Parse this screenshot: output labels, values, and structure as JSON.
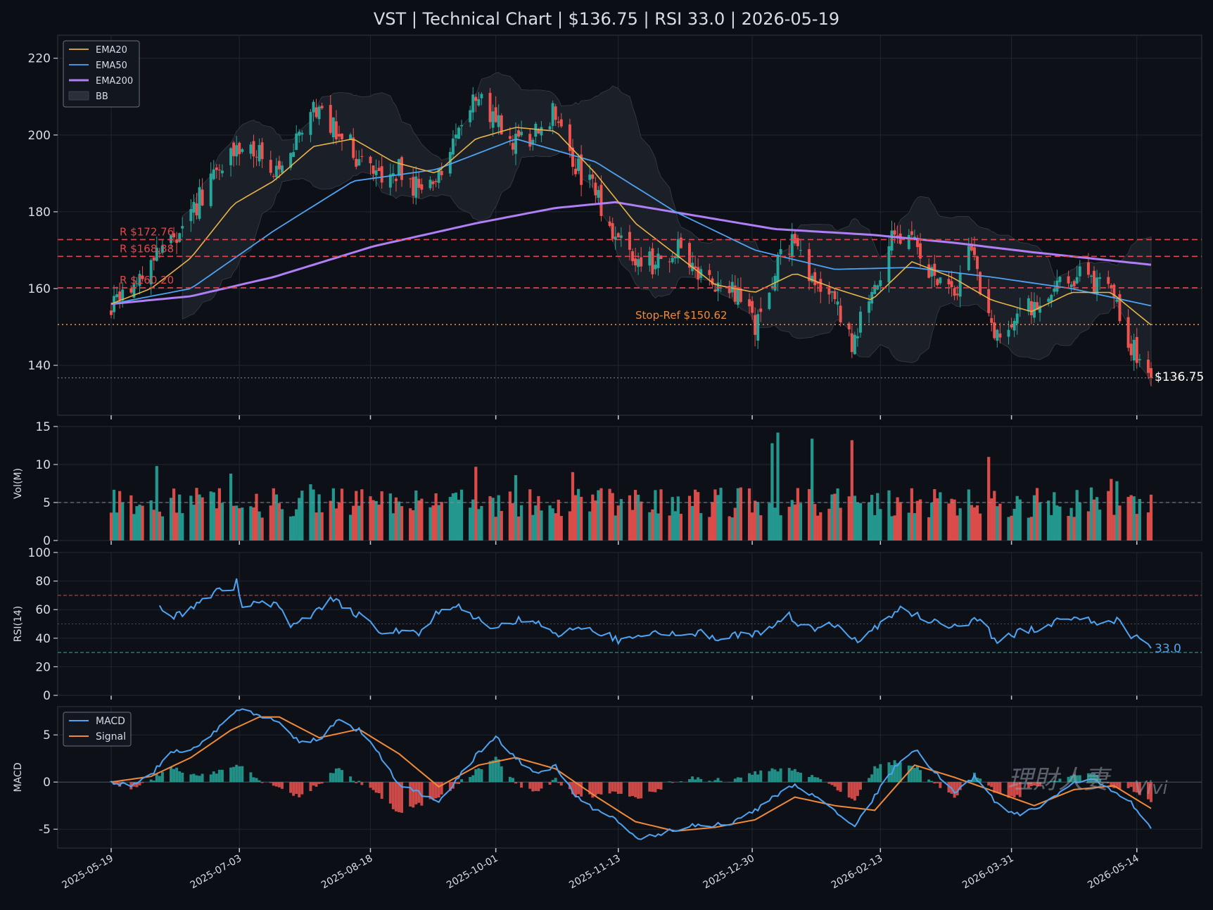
{
  "title": "VST | Technical Chart | $136.75 | RSI 33.0 | 2026-05-19",
  "colors": {
    "background": "#0b0e14",
    "panel": "#0d1117",
    "grid": "#1f2530",
    "up": "#26a69a",
    "down": "#ef5350",
    "ema20": "#e8b34a",
    "ema50": "#4ea3f2",
    "ema200": "#b07ff5",
    "bb": "#2a2f38",
    "resistance": "#e0474c",
    "stop": "#f08a3a",
    "macd": "#4ea3f2",
    "signal": "#f08a3a",
    "text": "#d8dce6"
  },
  "chart_data": [
    {
      "panel": "price",
      "type": "candlestick",
      "ylim": [
        127,
        226
      ],
      "yticks": [
        140,
        160,
        180,
        200,
        220
      ],
      "legend": {
        "position": "top-left",
        "entries": [
          "EMA20",
          "EMA50",
          "EMA200",
          "BB"
        ]
      },
      "price_path": [
        [
          "2025-05-19",
          154
        ],
        [
          "2025-05-26",
          158
        ],
        [
          "2025-06-02",
          166
        ],
        [
          "2025-06-10",
          172
        ],
        [
          "2025-06-16",
          180
        ],
        [
          "2025-06-24",
          188
        ],
        [
          "2025-07-01",
          194
        ],
        [
          "2025-07-08",
          196
        ],
        [
          "2025-07-15",
          192
        ],
        [
          "2025-07-22",
          199
        ],
        [
          "2025-07-29",
          208
        ],
        [
          "2025-08-05",
          203
        ],
        [
          "2025-08-12",
          196
        ],
        [
          "2025-08-19",
          190
        ],
        [
          "2025-08-26",
          192
        ],
        [
          "2025-09-02",
          186
        ],
        [
          "2025-09-10",
          190
        ],
        [
          "2025-09-17",
          200
        ],
        [
          "2025-09-24",
          211
        ],
        [
          "2025-10-01",
          203
        ],
        [
          "2025-10-08",
          197
        ],
        [
          "2025-10-15",
          201
        ],
        [
          "2025-10-22",
          207
        ],
        [
          "2025-10-29",
          192
        ],
        [
          "2025-11-05",
          184
        ],
        [
          "2025-11-12",
          172
        ],
        [
          "2025-11-19",
          168
        ],
        [
          "2025-11-26",
          167
        ],
        [
          "2025-12-03",
          171
        ],
        [
          "2025-12-10",
          164
        ],
        [
          "2025-12-17",
          160
        ],
        [
          "2025-12-24",
          158
        ],
        [
          "2025-12-31",
          150
        ],
        [
          "2026-01-07",
          166
        ],
        [
          "2026-01-14",
          172
        ],
        [
          "2026-01-21",
          160
        ],
        [
          "2026-01-28",
          158
        ],
        [
          "2026-02-03",
          146
        ],
        [
          "2026-02-10",
          158
        ],
        [
          "2026-02-17",
          172
        ],
        [
          "2026-02-24",
          174
        ],
        [
          "2026-03-03",
          163
        ],
        [
          "2026-03-10",
          157
        ],
        [
          "2026-03-17",
          170
        ],
        [
          "2026-03-24",
          148
        ],
        [
          "2026-03-31",
          151
        ],
        [
          "2026-04-07",
          155
        ],
        [
          "2026-04-14",
          159
        ],
        [
          "2026-04-21",
          164
        ],
        [
          "2026-04-28",
          161
        ],
        [
          "2026-05-05",
          158
        ],
        [
          "2026-05-12",
          146
        ],
        [
          "2026-05-19",
          136.75
        ]
      ],
      "ema20": [
        [
          "2025-05-19",
          156
        ],
        [
          "2025-06-02",
          160
        ],
        [
          "2025-06-16",
          168
        ],
        [
          "2025-07-01",
          182
        ],
        [
          "2025-07-15",
          188
        ],
        [
          "2025-07-29",
          197
        ],
        [
          "2025-08-12",
          199
        ],
        [
          "2025-08-26",
          193
        ],
        [
          "2025-09-10",
          190
        ],
        [
          "2025-09-24",
          199
        ],
        [
          "2025-10-08",
          202
        ],
        [
          "2025-10-22",
          201
        ],
        [
          "2025-11-05",
          190
        ],
        [
          "2025-11-19",
          177
        ],
        [
          "2025-12-03",
          169
        ],
        [
          "2025-12-17",
          161
        ],
        [
          "2025-12-31",
          159
        ],
        [
          "2026-01-14",
          164
        ],
        [
          "2026-01-28",
          160
        ],
        [
          "2026-02-10",
          157
        ],
        [
          "2026-02-24",
          167
        ],
        [
          "2026-03-10",
          163
        ],
        [
          "2026-03-24",
          157
        ],
        [
          "2026-04-07",
          154
        ],
        [
          "2026-04-21",
          159
        ],
        [
          "2026-05-05",
          159
        ],
        [
          "2026-05-19",
          150.5
        ]
      ],
      "ema50": [
        [
          "2025-05-19",
          156
        ],
        [
          "2025-06-16",
          160
        ],
        [
          "2025-07-15",
          175
        ],
        [
          "2025-08-12",
          188
        ],
        [
          "2025-09-10",
          191
        ],
        [
          "2025-10-08",
          199
        ],
        [
          "2025-11-05",
          193
        ],
        [
          "2025-12-03",
          180
        ],
        [
          "2025-12-31",
          170
        ],
        [
          "2026-01-28",
          165
        ],
        [
          "2026-02-24",
          165.5
        ],
        [
          "2026-03-24",
          163
        ],
        [
          "2026-04-21",
          160
        ],
        [
          "2026-05-19",
          155.5
        ]
      ],
      "ema200": [
        [
          "2025-05-19",
          156
        ],
        [
          "2025-06-16",
          158
        ],
        [
          "2025-07-15",
          163
        ],
        [
          "2025-08-19",
          171
        ],
        [
          "2025-09-24",
          177
        ],
        [
          "2025-10-22",
          181
        ],
        [
          "2025-11-12",
          182.5
        ],
        [
          "2025-12-10",
          179
        ],
        [
          "2026-01-07",
          175.5
        ],
        [
          "2026-02-10",
          174
        ],
        [
          "2026-03-10",
          172
        ],
        [
          "2026-04-07",
          169.5
        ],
        [
          "2026-05-19",
          166.2
        ]
      ],
      "resistance": [
        172.76,
        168.38,
        160.2
      ],
      "resistance_labels": [
        "R $172.76",
        "R $168.38",
        "R $160.20"
      ],
      "stop_ref": 150.62,
      "stop_label": "Stop-Ref $150.62",
      "last_price": 136.75,
      "last_price_label": "$136.75"
    },
    {
      "panel": "volume",
      "type": "bar",
      "ylabel": "Vol(M)",
      "ylim": [
        0,
        15
      ],
      "yticks": [
        0,
        5,
        10,
        15
      ],
      "reference_line": 5,
      "typical_range": [
        3,
        7
      ],
      "spikes": [
        [
          "2025-06-04",
          9.8
        ],
        [
          "2025-06-30",
          8.8
        ],
        [
          "2025-07-28",
          7.4
        ],
        [
          "2025-09-24",
          9.7
        ],
        [
          "2025-10-08",
          8.6
        ],
        [
          "2025-10-28",
          9.0
        ],
        [
          "2025-12-20",
          7.6
        ],
        [
          "2026-01-06",
          12.8
        ],
        [
          "2026-01-08",
          14.2
        ],
        [
          "2026-01-20",
          13.4
        ],
        [
          "2026-02-03",
          13.2
        ],
        [
          "2026-03-23",
          11.0
        ],
        [
          "2026-05-05",
          8.1
        ],
        [
          "2026-05-07",
          7.8
        ]
      ]
    },
    {
      "panel": "rsi",
      "type": "line",
      "ylabel": "RSI(14)",
      "ylim": [
        0,
        100
      ],
      "yticks": [
        0,
        20,
        40,
        60,
        80,
        100
      ],
      "overbought": 70,
      "oversold": 30,
      "midline": 50,
      "last_label": "33.0",
      "values": [
        [
          "2025-06-05",
          61
        ],
        [
          "2025-06-10",
          54
        ],
        [
          "2025-06-18",
          64
        ],
        [
          "2025-06-25",
          72
        ],
        [
          "2025-06-30",
          74
        ],
        [
          "2025-07-02",
          79
        ],
        [
          "2025-07-04",
          61
        ],
        [
          "2025-07-09",
          67
        ],
        [
          "2025-07-16",
          63
        ],
        [
          "2025-07-21",
          49
        ],
        [
          "2025-07-28",
          56
        ],
        [
          "2025-08-04",
          68
        ],
        [
          "2025-08-07",
          65
        ],
        [
          "2025-08-14",
          56
        ],
        [
          "2025-08-21",
          45
        ],
        [
          "2025-08-28",
          44
        ],
        [
          "2025-09-04",
          42
        ],
        [
          "2025-09-11",
          60
        ],
        [
          "2025-09-18",
          63
        ],
        [
          "2025-09-25",
          52
        ],
        [
          "2025-10-02",
          48
        ],
        [
          "2025-10-09",
          53
        ],
        [
          "2025-10-16",
          51
        ],
        [
          "2025-10-23",
          42
        ],
        [
          "2025-10-30",
          47
        ],
        [
          "2025-11-06",
          45
        ],
        [
          "2025-11-13",
          39
        ],
        [
          "2025-11-20",
          40
        ],
        [
          "2025-11-27",
          46
        ],
        [
          "2025-12-04",
          42
        ],
        [
          "2025-12-11",
          44
        ],
        [
          "2025-12-18",
          41
        ],
        [
          "2025-12-25",
          42
        ],
        [
          "2026-01-01",
          43
        ],
        [
          "2026-01-08",
          52
        ],
        [
          "2026-01-12",
          59
        ],
        [
          "2026-01-15",
          47
        ],
        [
          "2026-01-22",
          47
        ],
        [
          "2026-01-29",
          51
        ],
        [
          "2026-02-05",
          37
        ],
        [
          "2026-02-12",
          49
        ],
        [
          "2026-02-19",
          60
        ],
        [
          "2026-02-26",
          57
        ],
        [
          "2026-03-05",
          51
        ],
        [
          "2026-03-12",
          47
        ],
        [
          "2026-03-19",
          54
        ],
        [
          "2026-03-26",
          38
        ],
        [
          "2026-04-02",
          44
        ],
        [
          "2026-04-09",
          47
        ],
        [
          "2026-04-16",
          52
        ],
        [
          "2026-04-23",
          57
        ],
        [
          "2026-04-30",
          48
        ],
        [
          "2026-05-07",
          52
        ],
        [
          "2026-05-12",
          42
        ],
        [
          "2026-05-19",
          33
        ]
      ]
    },
    {
      "panel": "macd",
      "type": "line",
      "ylabel": "MACD",
      "ylim": [
        -7,
        8
      ],
      "yticks": [
        -5,
        0,
        5
      ],
      "legend": {
        "position": "top-left",
        "entries": [
          "MACD",
          "Signal"
        ]
      },
      "macd": [
        [
          "2025-05-19",
          0
        ],
        [
          "2025-05-26",
          -0.3
        ],
        [
          "2025-06-02",
          0.8
        ],
        [
          "2025-06-09",
          3.2
        ],
        [
          "2025-06-16",
          3.2
        ],
        [
          "2025-06-23",
          5.0
        ],
        [
          "2025-06-30",
          7.0
        ],
        [
          "2025-07-03",
          7.8
        ],
        [
          "2025-07-10",
          7.0
        ],
        [
          "2025-07-17",
          6.5
        ],
        [
          "2025-07-24",
          4.2
        ],
        [
          "2025-07-31",
          4.5
        ],
        [
          "2025-08-07",
          6.6
        ],
        [
          "2025-08-14",
          5.5
        ],
        [
          "2025-08-21",
          3.0
        ],
        [
          "2025-08-28",
          -0.2
        ],
        [
          "2025-09-04",
          -1.2
        ],
        [
          "2025-09-11",
          -2.2
        ],
        [
          "2025-09-18",
          0.5
        ],
        [
          "2025-09-25",
          3.2
        ],
        [
          "2025-10-01",
          4.8
        ],
        [
          "2025-10-08",
          2.5
        ],
        [
          "2025-10-15",
          0.8
        ],
        [
          "2025-10-22",
          1.8
        ],
        [
          "2025-10-29",
          -1.5
        ],
        [
          "2025-11-05",
          -3.0
        ],
        [
          "2025-11-12",
          -3.8
        ],
        [
          "2025-11-19",
          -6.0
        ],
        [
          "2025-11-26",
          -5.6
        ],
        [
          "2025-12-03",
          -5.0
        ],
        [
          "2025-12-10",
          -4.5
        ],
        [
          "2025-12-17",
          -4.6
        ],
        [
          "2025-12-24",
          -4.2
        ],
        [
          "2025-12-31",
          -3.0
        ],
        [
          "2026-01-07",
          -1.5
        ],
        [
          "2026-01-14",
          -0.2
        ],
        [
          "2026-01-21",
          -1.6
        ],
        [
          "2026-01-28",
          -3.0
        ],
        [
          "2026-02-04",
          -4.6
        ],
        [
          "2026-02-11",
          -1.5
        ],
        [
          "2026-02-18",
          1.5
        ],
        [
          "2026-02-25",
          3.5
        ],
        [
          "2026-03-04",
          1.0
        ],
        [
          "2026-03-11",
          -1.0
        ],
        [
          "2026-03-18",
          0.5
        ],
        [
          "2026-03-25",
          -2.0
        ],
        [
          "2026-04-01",
          -3.5
        ],
        [
          "2026-04-08",
          -3.0
        ],
        [
          "2026-04-15",
          -1.5
        ],
        [
          "2026-04-22",
          0.0
        ],
        [
          "2026-04-29",
          0.3
        ],
        [
          "2026-05-06",
          -1.0
        ],
        [
          "2026-05-12",
          -2.2
        ],
        [
          "2026-05-19",
          -4.8
        ]
      ],
      "signal": [
        [
          "2025-05-19",
          0
        ],
        [
          "2025-06-02",
          0.6
        ],
        [
          "2025-06-16",
          2.6
        ],
        [
          "2025-06-30",
          5.5
        ],
        [
          "2025-07-10",
          6.9
        ],
        [
          "2025-07-17",
          6.9
        ],
        [
          "2025-07-31",
          4.7
        ],
        [
          "2025-08-14",
          5.6
        ],
        [
          "2025-08-28",
          3.0
        ],
        [
          "2025-09-11",
          -0.5
        ],
        [
          "2025-09-25",
          1.8
        ],
        [
          "2025-10-08",
          2.6
        ],
        [
          "2025-10-22",
          1.4
        ],
        [
          "2025-11-05",
          -1.5
        ],
        [
          "2025-11-19",
          -4.2
        ],
        [
          "2025-12-03",
          -5.2
        ],
        [
          "2025-12-17",
          -4.8
        ],
        [
          "2025-12-31",
          -4.0
        ],
        [
          "2026-01-14",
          -1.6
        ],
        [
          "2026-01-28",
          -2.5
        ],
        [
          "2026-02-11",
          -3.0
        ],
        [
          "2026-02-25",
          1.8
        ],
        [
          "2026-03-11",
          0.5
        ],
        [
          "2026-03-25",
          -1.0
        ],
        [
          "2026-04-08",
          -2.5
        ],
        [
          "2026-04-22",
          -0.8
        ],
        [
          "2026-05-06",
          -0.4
        ],
        [
          "2026-05-19",
          -2.8
        ]
      ]
    }
  ],
  "xaxis": {
    "start": "2025-05-19",
    "end": "2026-05-19",
    "ticks": [
      "2025-05-19",
      "2025-07-03",
      "2025-08-18",
      "2025-10-01",
      "2025-11-13",
      "2025-12-30",
      "2026-02-13",
      "2026-03-31",
      "2026-05-14"
    ]
  },
  "watermark": {
    "text": "理財人妻",
    "signature": "Vivi"
  }
}
